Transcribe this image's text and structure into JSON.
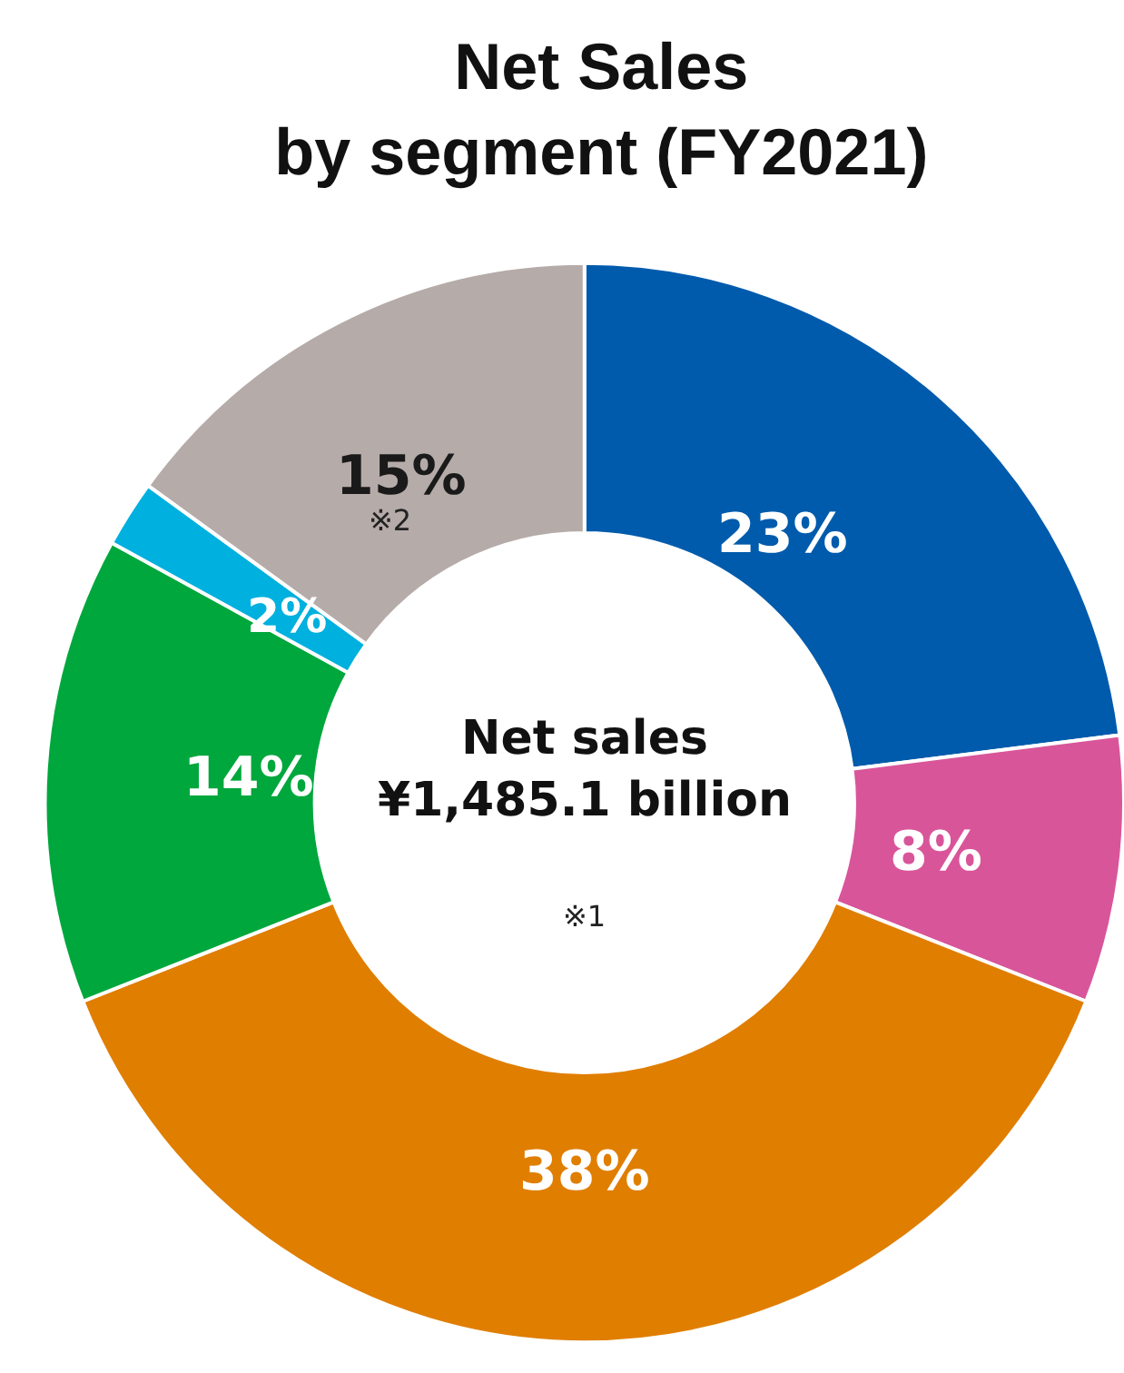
{
  "chart_data": {
    "type": "donut",
    "title": "Net Sales\nby segment (FY2021)",
    "categories": [
      null,
      null,
      null,
      null,
      null,
      null
    ],
    "values": [
      23,
      8,
      38,
      14,
      2,
      15
    ],
    "value_labels": [
      "23%",
      "8%",
      "38%",
      "14%",
      "2%",
      "15%"
    ],
    "colors": [
      "#005bac",
      "#d9559a",
      "#e07e00",
      "#00a73c",
      "#00b0de",
      "#b5aba9"
    ],
    "annotations": [
      "Net sales\n¥1,485.1 billion",
      "※1",
      "※2"
    ],
    "legend": false
  }
}
